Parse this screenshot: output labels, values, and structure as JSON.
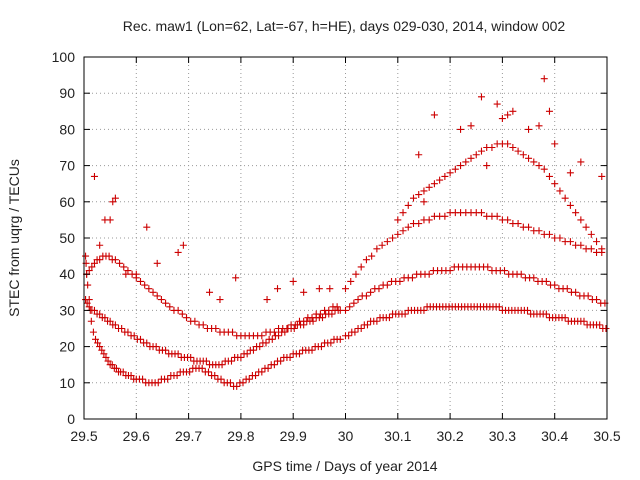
{
  "chart_data": {
    "type": "scatter",
    "title": "Rec. maw1 (Lon=62, Lat=-67, h=HE), days 029-030, 2014, window 002",
    "xlabel": "GPS time / Days of year 2014",
    "ylabel": "STEC from uqrg / TECUs",
    "xlim": [
      29.5,
      30.5
    ],
    "ylim": [
      0,
      100
    ],
    "xticks": [
      29.5,
      29.6,
      29.7,
      29.8,
      29.9,
      30.0,
      30.1,
      30.2,
      30.3,
      30.4,
      30.5
    ],
    "xtick_labels": [
      "29.5",
      "29.6",
      "29.7",
      "29.8",
      "29.9",
      "30",
      "30.1",
      "30.2",
      "30.3",
      "30.4",
      "30.5"
    ],
    "yticks": [
      0,
      10,
      20,
      30,
      40,
      50,
      60,
      70,
      80,
      90,
      100
    ],
    "ytick_labels": [
      "0",
      "10",
      "20",
      "30",
      "40",
      "50",
      "60",
      "70",
      "80",
      "90",
      "100"
    ],
    "grid": true,
    "marker": "+",
    "marker_color": "#cc0000",
    "series": [
      {
        "x": [
          29.503,
          29.504,
          29.505,
          29.507,
          29.51,
          29.512,
          29.514,
          29.518,
          29.522,
          29.526,
          29.53,
          29.534,
          29.538,
          29.542,
          29.546,
          29.55,
          29.554,
          29.558,
          29.562,
          29.566,
          29.57,
          29.575,
          29.58,
          29.585,
          29.59,
          29.595,
          29.6,
          29.606,
          29.612,
          29.618,
          29.624,
          29.63,
          29.636,
          29.642,
          29.648,
          29.654,
          29.66,
          29.666,
          29.672,
          29.678,
          29.684,
          29.69,
          29.696,
          29.702,
          29.708,
          29.714,
          29.72,
          29.726,
          29.732,
          29.738,
          29.744,
          29.75,
          29.756,
          29.762,
          29.768,
          29.774,
          29.78,
          29.786,
          29.792,
          29.798,
          29.804,
          29.81,
          29.816,
          29.822,
          29.828,
          29.834,
          29.84,
          29.846,
          29.852,
          29.858,
          29.864,
          29.87,
          29.876,
          29.882,
          29.888,
          29.894,
          29.9,
          29.906,
          29.912,
          29.918,
          29.924,
          29.93,
          29.936,
          29.942,
          29.948,
          29.954,
          29.96,
          29.966,
          29.972,
          29.978,
          29.984,
          29.99
        ],
        "y": [
          45,
          43,
          40,
          37,
          33,
          30,
          27,
          24,
          22,
          21,
          20,
          19,
          18,
          17,
          16,
          15,
          15,
          14,
          14,
          13,
          13,
          13,
          12,
          12,
          12,
          11,
          11,
          11,
          11,
          10,
          10,
          10,
          10,
          10,
          11,
          11,
          11,
          12,
          12,
          12,
          13,
          13,
          13,
          13,
          14,
          14,
          14,
          14,
          13,
          13,
          12,
          12,
          11,
          11,
          10,
          10,
          10,
          9,
          9,
          10,
          10,
          11,
          11,
          12,
          12,
          13,
          13,
          14,
          14,
          15,
          15,
          16,
          16,
          17,
          17,
          17,
          18,
          18,
          18,
          19,
          19,
          19,
          19,
          20,
          20,
          20,
          21,
          21,
          21,
          22,
          22,
          22
        ]
      },
      {
        "x": [
          29.503,
          29.506,
          29.51,
          29.515,
          29.52,
          29.525,
          29.53,
          29.535,
          29.54,
          29.545,
          29.55,
          29.555,
          29.56,
          29.566,
          29.572,
          29.578,
          29.584,
          29.59,
          29.596,
          29.602,
          29.608,
          29.614,
          29.62,
          29.626,
          29.632,
          29.638,
          29.644,
          29.65,
          29.656,
          29.662,
          29.668,
          29.674,
          29.68,
          29.686,
          29.692,
          29.698,
          29.704,
          29.71,
          29.716,
          29.722,
          29.728,
          29.734,
          29.74,
          29.746,
          29.752,
          29.758,
          29.764,
          29.77,
          29.776,
          29.782,
          29.788,
          29.794,
          29.8,
          29.806,
          29.812,
          29.818,
          29.824,
          29.83,
          29.836,
          29.842,
          29.848,
          29.854,
          29.86,
          29.866,
          29.872,
          29.878,
          29.884,
          29.89,
          29.896,
          29.902,
          29.908,
          29.914,
          29.92,
          29.926,
          29.932,
          29.938,
          29.944,
          29.95,
          29.956,
          29.962,
          29.968,
          29.974,
          29.98,
          29.986,
          29.99
        ],
        "y": [
          33,
          32,
          31,
          30,
          30,
          29,
          29,
          28,
          28,
          27,
          27,
          26,
          26,
          25,
          25,
          24,
          24,
          23,
          23,
          22,
          22,
          21,
          21,
          20,
          20,
          20,
          19,
          19,
          19,
          18,
          18,
          18,
          18,
          17,
          17,
          17,
          17,
          16,
          16,
          16,
          16,
          16,
          15,
          15,
          15,
          15,
          15,
          16,
          16,
          16,
          17,
          17,
          17,
          18,
          18,
          19,
          19,
          20,
          20,
          21,
          21,
          22,
          22,
          23,
          23,
          24,
          24,
          25,
          25,
          25,
          26,
          26,
          26,
          27,
          27,
          27,
          28,
          28,
          28,
          29,
          29,
          29,
          30,
          30,
          30
        ]
      },
      {
        "x": [
          29.505,
          29.51,
          29.515,
          29.52,
          29.525,
          29.53,
          29.536,
          29.542,
          29.548,
          29.554,
          29.56,
          29.568,
          29.576,
          29.584,
          29.592,
          29.6,
          29.608,
          29.616,
          29.624,
          29.632,
          29.64,
          29.648,
          29.656,
          29.664,
          29.672,
          29.68,
          29.688,
          29.696,
          29.704,
          29.712,
          29.72,
          29.728,
          29.736,
          29.744,
          29.752,
          29.76,
          29.768,
          29.776,
          29.784,
          29.792,
          29.8,
          29.808,
          29.816,
          29.824,
          29.832,
          29.84,
          29.848,
          29.856,
          29.864,
          29.872,
          29.88,
          29.888,
          29.896,
          29.904,
          29.912,
          29.92,
          29.928,
          29.936,
          29.944,
          29.952,
          29.96,
          29.968,
          29.976,
          29.984
        ],
        "y": [
          40,
          41,
          42,
          43,
          44,
          44,
          45,
          45,
          45,
          44,
          44,
          43,
          42,
          41,
          40,
          39,
          38,
          37,
          36,
          35,
          34,
          33,
          32,
          31,
          30,
          30,
          29,
          28,
          27,
          27,
          26,
          26,
          25,
          25,
          25,
          24,
          24,
          24,
          24,
          23,
          23,
          23,
          23,
          23,
          23,
          23,
          24,
          24,
          24,
          25,
          25,
          25,
          26,
          26,
          27,
          27,
          28,
          28,
          29,
          29,
          30,
          30,
          31,
          31
        ]
      },
      {
        "x": [
          29.52,
          29.53,
          29.54,
          29.55,
          29.555,
          29.56,
          29.58,
          29.6,
          29.62,
          29.64,
          29.68,
          29.69,
          29.74,
          29.76,
          29.79,
          29.85,
          29.87,
          29.9,
          29.92,
          29.95,
          29.97
        ],
        "y": [
          67,
          48,
          55,
          55,
          60,
          61,
          40,
          40,
          53,
          43,
          46,
          48,
          35,
          33,
          39,
          33,
          36,
          38,
          35,
          36,
          36
        ]
      },
      {
        "x": [
          30.0,
          30.006,
          30.012,
          30.018,
          30.024,
          30.03,
          30.036,
          30.042,
          30.048,
          30.054,
          30.06,
          30.066,
          30.072,
          30.078,
          30.084,
          30.09,
          30.096,
          30.102,
          30.108,
          30.114,
          30.12,
          30.126,
          30.132,
          30.138,
          30.144,
          30.15,
          30.156,
          30.162,
          30.168,
          30.174,
          30.18,
          30.186,
          30.192,
          30.198,
          30.204,
          30.21,
          30.216,
          30.222,
          30.228,
          30.234,
          30.24,
          30.246,
          30.252,
          30.258,
          30.264,
          30.27,
          30.276,
          30.282,
          30.288,
          30.294,
          30.3,
          30.306,
          30.312,
          30.318,
          30.324,
          30.33,
          30.336,
          30.342,
          30.348,
          30.354,
          30.36,
          30.366,
          30.372,
          30.378,
          30.384,
          30.39,
          30.396,
          30.402,
          30.408,
          30.414,
          30.42,
          30.426,
          30.432,
          30.438,
          30.444,
          30.45,
          30.456,
          30.462,
          30.468,
          30.474,
          30.48,
          30.486,
          30.492,
          30.498
        ],
        "y": [
          23,
          23,
          24,
          24,
          25,
          25,
          26,
          26,
          27,
          27,
          27,
          28,
          28,
          28,
          28,
          29,
          29,
          29,
          29,
          29,
          30,
          30,
          30,
          30,
          30,
          30,
          31,
          31,
          31,
          31,
          31,
          31,
          31,
          31,
          31,
          31,
          31,
          31,
          31,
          31,
          31,
          31,
          31,
          31,
          31,
          31,
          31,
          31,
          31,
          31,
          30,
          30,
          30,
          30,
          30,
          30,
          30,
          30,
          30,
          29,
          29,
          29,
          29,
          29,
          29,
          28,
          28,
          28,
          28,
          28,
          28,
          27,
          27,
          27,
          27,
          27,
          27,
          26,
          26,
          26,
          26,
          26,
          25,
          25
        ]
      },
      {
        "x": [
          30.0,
          30.008,
          30.016,
          30.024,
          30.032,
          30.04,
          30.048,
          30.056,
          30.064,
          30.072,
          30.08,
          30.088,
          30.096,
          30.104,
          30.112,
          30.12,
          30.128,
          30.136,
          30.144,
          30.152,
          30.16,
          30.168,
          30.176,
          30.184,
          30.192,
          30.2,
          30.208,
          30.216,
          30.224,
          30.232,
          30.24,
          30.248,
          30.256,
          30.264,
          30.272,
          30.28,
          30.288,
          30.296,
          30.304,
          30.312,
          30.32,
          30.328,
          30.336,
          30.344,
          30.352,
          30.36,
          30.368,
          30.376,
          30.384,
          30.392,
          30.4,
          30.408,
          30.416,
          30.424,
          30.432,
          30.44,
          30.448,
          30.456,
          30.464,
          30.472,
          30.48,
          30.488,
          30.496
        ],
        "y": [
          30,
          31,
          32,
          33,
          34,
          34,
          35,
          36,
          36,
          37,
          37,
          38,
          38,
          38,
          39,
          39,
          39,
          40,
          40,
          40,
          40,
          41,
          41,
          41,
          41,
          41,
          42,
          42,
          42,
          42,
          42,
          42,
          42,
          42,
          42,
          41,
          41,
          41,
          41,
          40,
          40,
          40,
          40,
          39,
          39,
          39,
          38,
          38,
          38,
          37,
          37,
          36,
          36,
          36,
          35,
          35,
          34,
          34,
          34,
          33,
          33,
          32,
          32
        ]
      },
      {
        "x": [
          30.0,
          30.01,
          30.02,
          30.03,
          30.04,
          30.05,
          30.06,
          30.07,
          30.08,
          30.09,
          30.1,
          30.11,
          30.12,
          30.13,
          30.14,
          30.15,
          30.16,
          30.17,
          30.18,
          30.19,
          30.2,
          30.21,
          30.22,
          30.23,
          30.24,
          30.25,
          30.26,
          30.27,
          30.28,
          30.29,
          30.3,
          30.31,
          30.32,
          30.33,
          30.34,
          30.35,
          30.36,
          30.37,
          30.38,
          30.39,
          30.4,
          30.41,
          30.42,
          30.43,
          30.44,
          30.45,
          30.46,
          30.47,
          30.48,
          30.49
        ],
        "y": [
          36,
          38,
          40,
          42,
          44,
          45,
          47,
          48,
          49,
          50,
          51,
          52,
          53,
          54,
          54,
          55,
          55,
          56,
          56,
          56,
          57,
          57,
          57,
          57,
          57,
          57,
          57,
          56,
          56,
          56,
          55,
          55,
          54,
          54,
          53,
          53,
          52,
          52,
          51,
          51,
          50,
          50,
          49,
          49,
          48,
          48,
          47,
          47,
          46,
          46
        ]
      },
      {
        "x": [
          30.1,
          30.11,
          30.12,
          30.13,
          30.14,
          30.15,
          30.16,
          30.17,
          30.18,
          30.19,
          30.2,
          30.21,
          30.22,
          30.23,
          30.24,
          30.25,
          30.26,
          30.27,
          30.28,
          30.29,
          30.3,
          30.31,
          30.32,
          30.33,
          30.34,
          30.35,
          30.36,
          30.37,
          30.38,
          30.39,
          30.4,
          30.41,
          30.42,
          30.43,
          30.44,
          30.45,
          30.46,
          30.47,
          30.48,
          30.49
        ],
        "y": [
          55,
          57,
          59,
          61,
          62,
          63,
          64,
          65,
          66,
          67,
          68,
          69,
          70,
          71,
          72,
          73,
          74,
          75,
          75,
          76,
          76,
          76,
          75,
          74,
          73,
          72,
          71,
          70,
          69,
          67,
          65,
          63,
          61,
          59,
          57,
          55,
          53,
          51,
          49,
          47
        ]
      },
      {
        "x": [
          30.14,
          30.15,
          30.17,
          30.22,
          30.24,
          30.26,
          30.27,
          30.29,
          30.3,
          30.31,
          30.32,
          30.35,
          30.37,
          30.38,
          30.39,
          30.4,
          30.43,
          30.45,
          30.49
        ],
        "y": [
          73,
          60,
          84,
          80,
          81,
          89,
          70,
          87,
          83,
          84,
          85,
          80,
          81,
          94,
          85,
          76,
          68,
          71,
          67
        ]
      }
    ]
  }
}
